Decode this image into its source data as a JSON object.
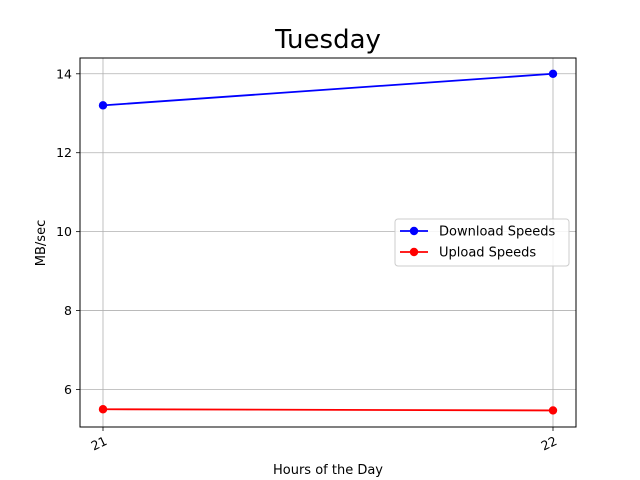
{
  "chart_data": {
    "type": "line",
    "title": "Tuesday",
    "xlabel": "Hours of the Day",
    "ylabel": "MB/sec",
    "x": [
      "21",
      "22"
    ],
    "ylim": [
      5.05,
      14.4
    ],
    "yticks": [
      "6",
      "8",
      "10",
      "12",
      "14"
    ],
    "grid": true,
    "legend_position": "center-right",
    "series": [
      {
        "name": "Download Speeds",
        "values": [
          13.2,
          14.0
        ],
        "color": "#0000ff",
        "marker": "circle"
      },
      {
        "name": "Upload Speeds",
        "values": [
          5.5,
          5.47
        ],
        "color": "#ff0000",
        "marker": "circle"
      }
    ]
  }
}
